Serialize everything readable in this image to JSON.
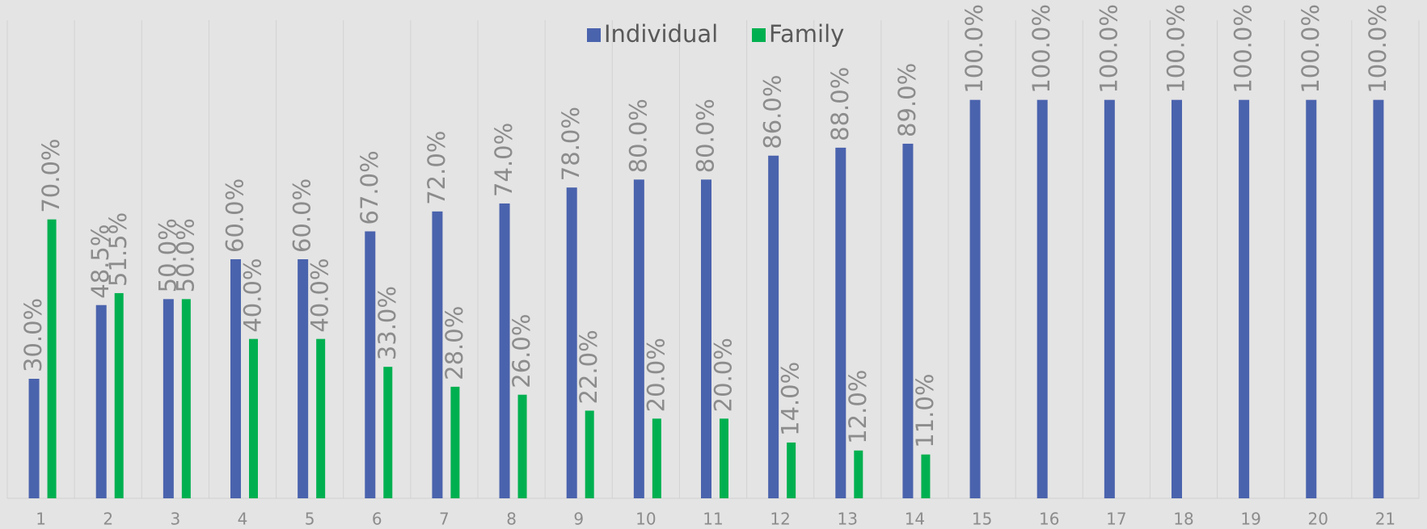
{
  "chart_data": {
    "type": "bar",
    "categories": [
      "1",
      "2",
      "3",
      "4",
      "5",
      "6",
      "7",
      "8",
      "9",
      "10",
      "11",
      "12",
      "13",
      "14",
      "15",
      "16",
      "17",
      "18",
      "19",
      "20",
      "21"
    ],
    "series": [
      {
        "name": "Individual",
        "color": "#4a63ad",
        "values": [
          30,
          48.5,
          50,
          60,
          60,
          67,
          72,
          74,
          78,
          80,
          80,
          86,
          88,
          89,
          100,
          100,
          100,
          100,
          100,
          100,
          100
        ],
        "value_labels": [
          "30.0%",
          "48.5%",
          "50.0%",
          "60.0%",
          "60.0%",
          "67.0%",
          "72.0%",
          "74.0%",
          "78.0%",
          "80.0%",
          "80.0%",
          "86.0%",
          "88.0%",
          "89.0%",
          "100.0%",
          "100.0%",
          "100.0%",
          "100.0%",
          "100.0%",
          "100.0%",
          "100.0%"
        ]
      },
      {
        "name": "Family",
        "color": "#00b050",
        "values": [
          70,
          51.5,
          50,
          40,
          40,
          33,
          28,
          26,
          22,
          20,
          20,
          14,
          12,
          11,
          null,
          null,
          null,
          null,
          null,
          null,
          null
        ],
        "value_labels": [
          "70.0%",
          "51.5%",
          "50.0%",
          "40.0%",
          "40.0%",
          "33.0%",
          "28.0%",
          "26.0%",
          "22.0%",
          "20.0%",
          "20.0%",
          "14.0%",
          "12.0%",
          "11.0%",
          null,
          null,
          null,
          null,
          null,
          null,
          null
        ]
      }
    ],
    "ylim": [
      0,
      120
    ],
    "legend": "top"
  }
}
